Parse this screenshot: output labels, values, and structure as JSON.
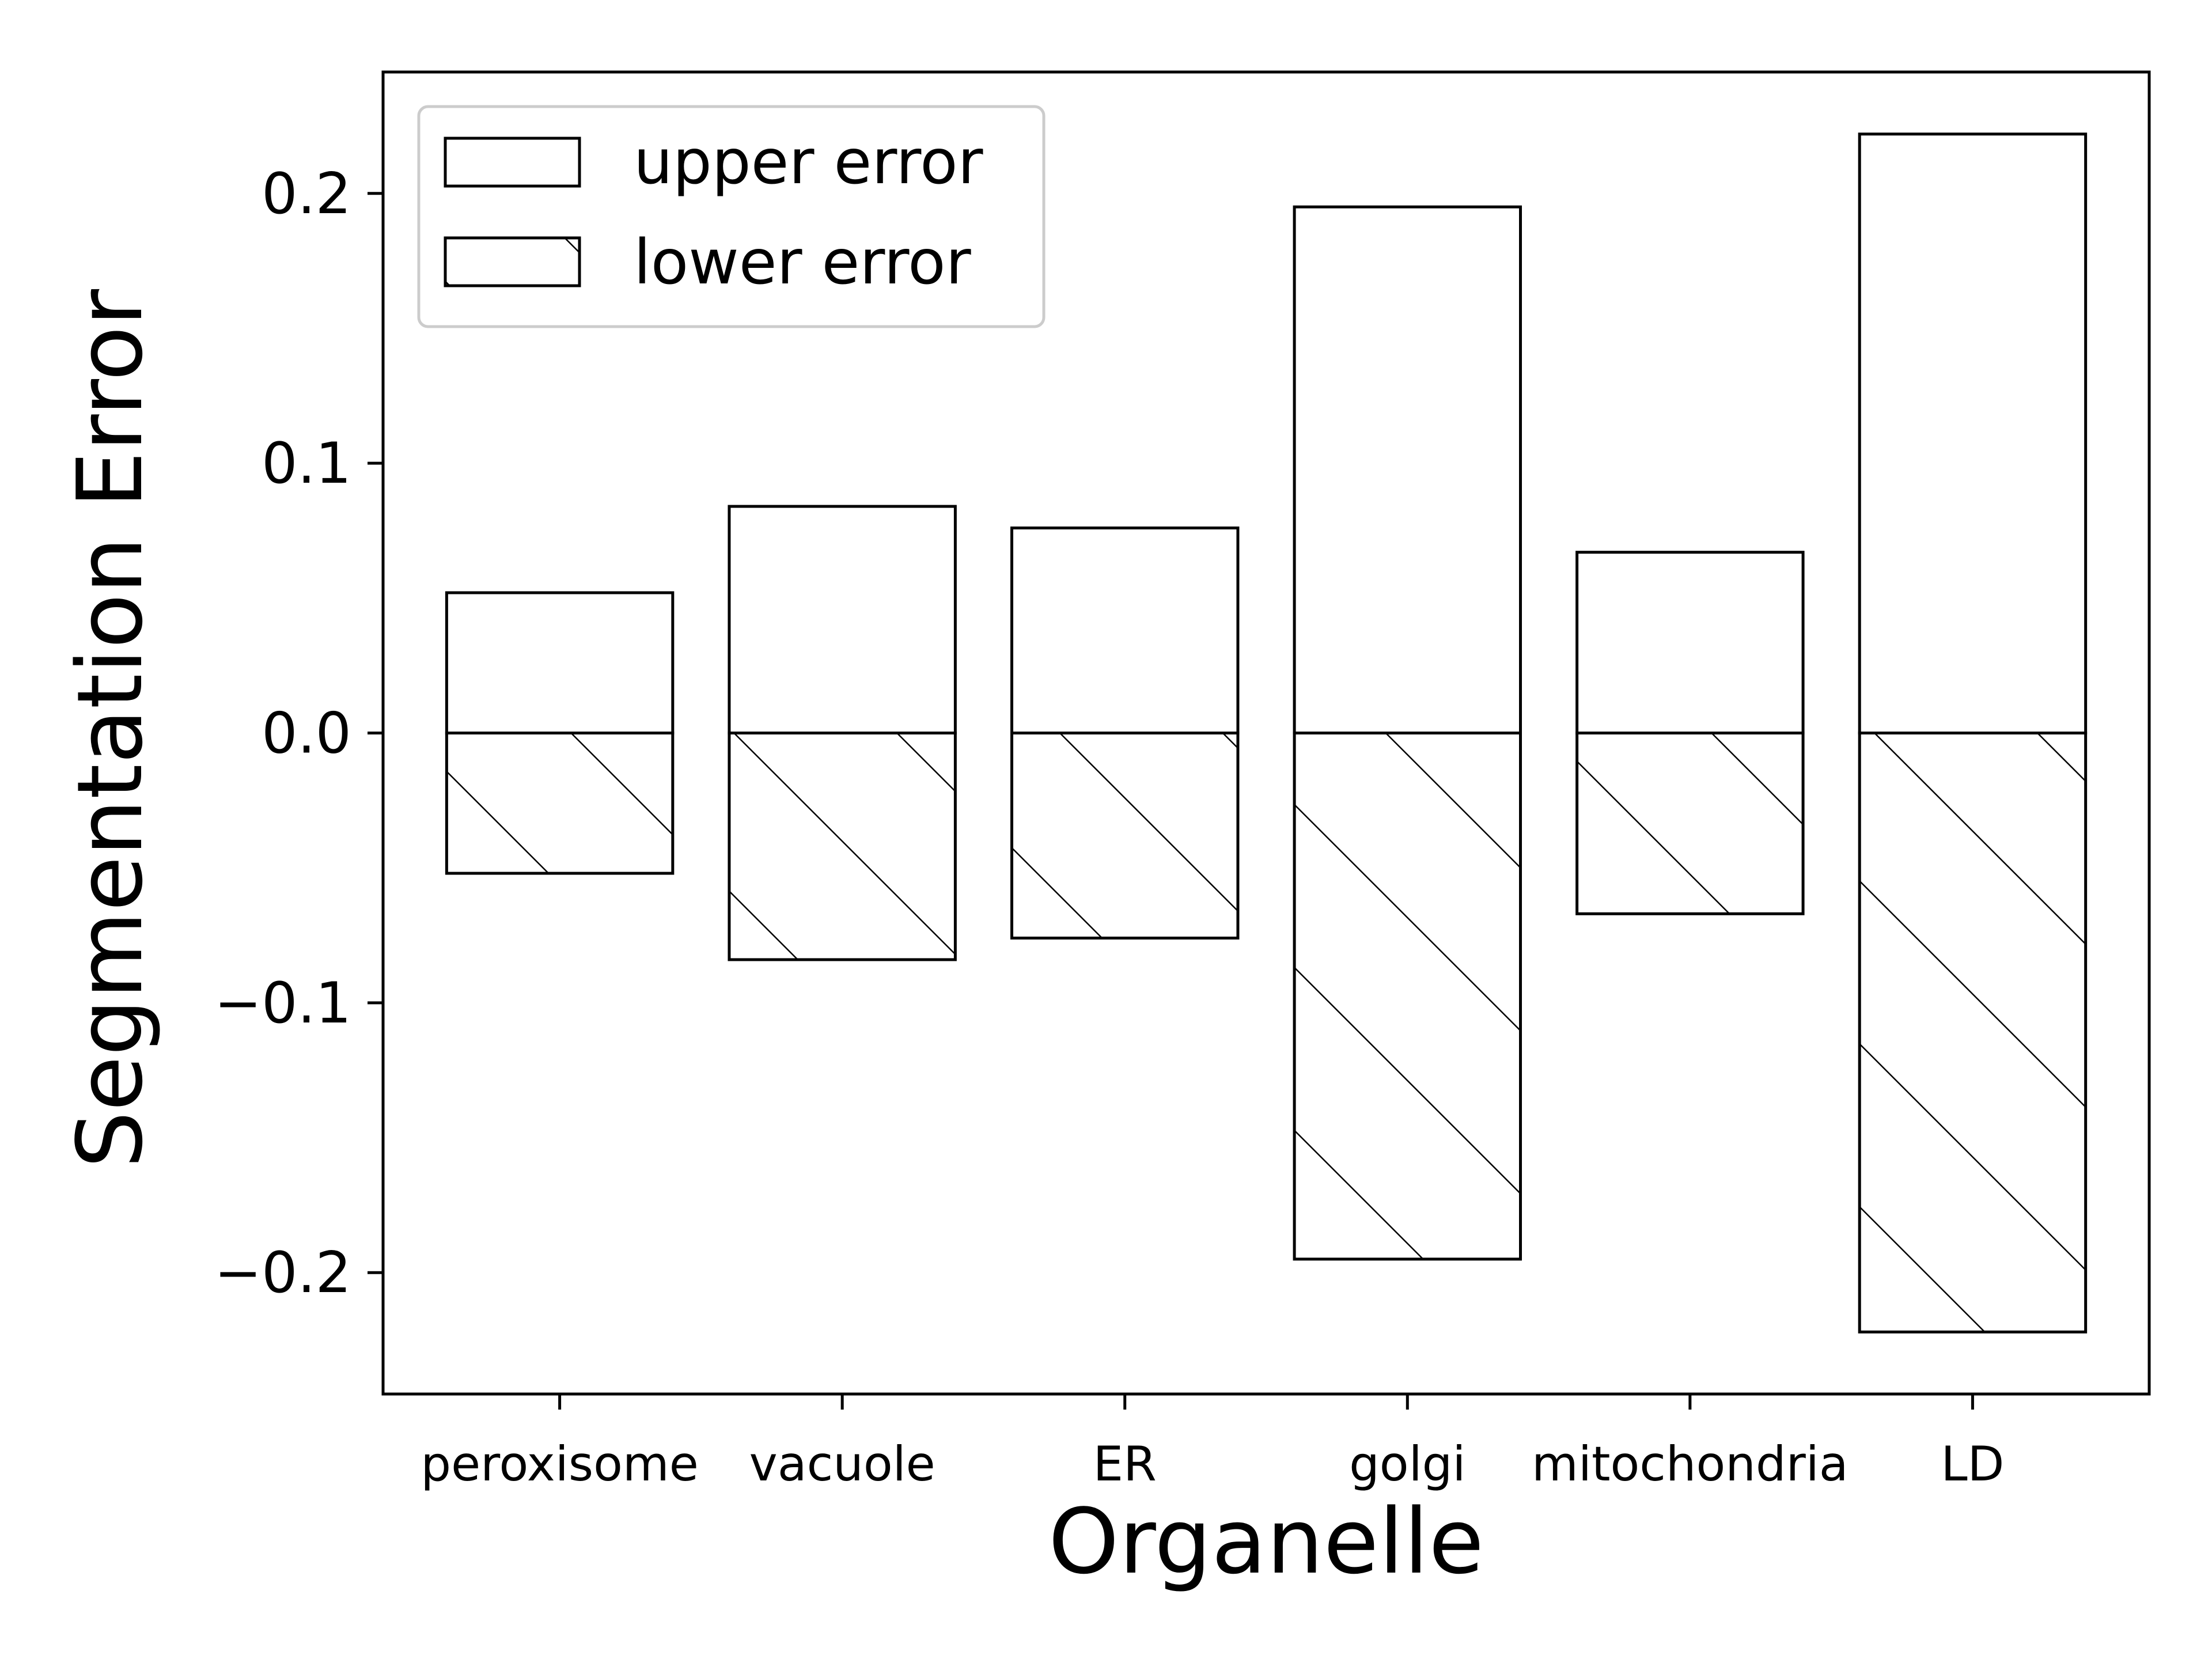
{
  "chart_data": {
    "type": "bar",
    "title": "",
    "xlabel": "Organelle",
    "ylabel": "Segmentation Error",
    "categories": [
      "peroxisome",
      "vacuole",
      "ER",
      "golgi",
      "mitochondria",
      "LD"
    ],
    "series": [
      {
        "name": "upper error",
        "values": [
          0.052,
          0.084,
          0.076,
          0.195,
          0.067,
          0.222
        ],
        "fill": "#ffffff",
        "hatch": "none"
      },
      {
        "name": "lower error",
        "values": [
          -0.052,
          -0.084,
          -0.076,
          -0.195,
          -0.067,
          -0.222
        ],
        "fill": "#ffffff",
        "hatch": "diagonal"
      }
    ],
    "ylim": [
      -0.245,
      0.245
    ],
    "yticks": [
      -0.2,
      -0.1,
      0.0,
      0.1,
      0.2
    ],
    "ytick_labels": [
      "−0.2",
      "−0.1",
      "0.0",
      "0.1",
      "0.2"
    ],
    "grid": false,
    "legend_position": "top-left",
    "colors": {
      "edge": "#000000",
      "background": "#ffffff",
      "legend_frame": "#cccccc"
    }
  }
}
